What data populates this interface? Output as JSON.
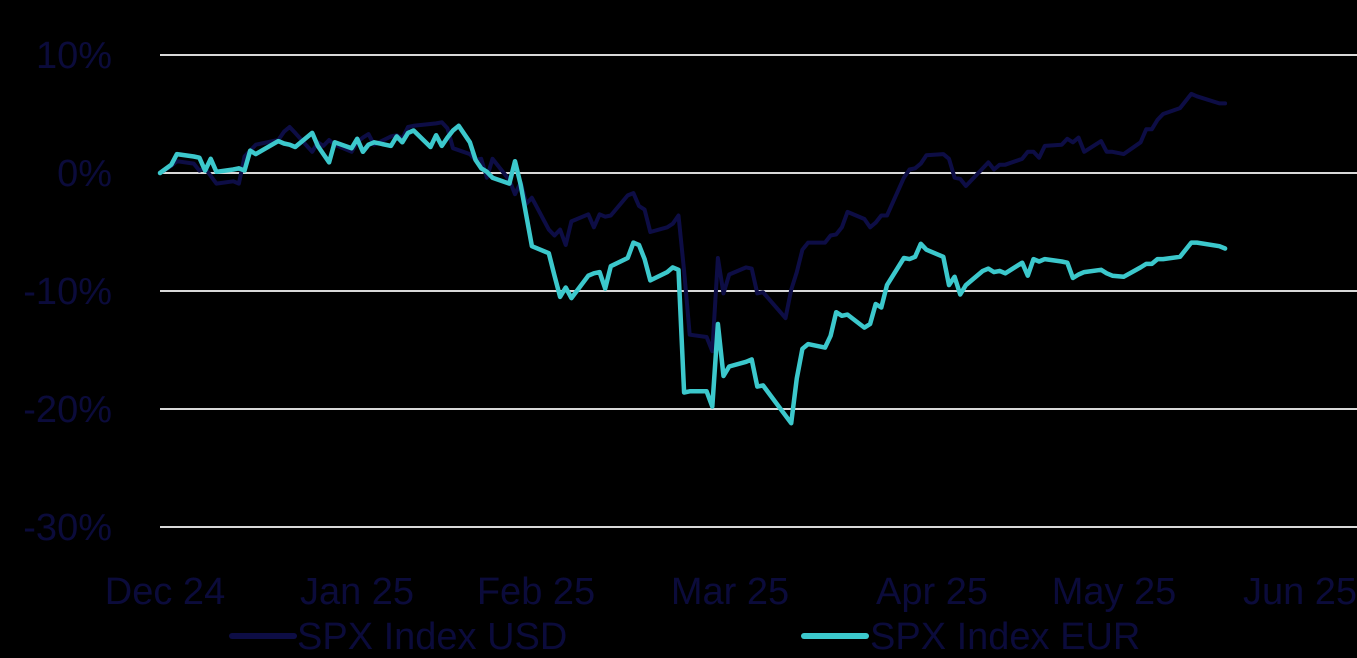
{
  "colors": {
    "background": "#000000",
    "grid": "#d9d9d9",
    "text": "#0b0b3b"
  },
  "chart_data": {
    "type": "line",
    "title": "",
    "xlabel": "",
    "ylabel": "",
    "ylim": [
      -30,
      10
    ],
    "yticks": [
      10,
      0,
      -10,
      -20,
      -30
    ],
    "ytick_labels": [
      "10%",
      "0%",
      "-10%",
      "-20%",
      "-30%"
    ],
    "xlim": [
      "2024-12-31",
      "2025-06-30"
    ],
    "xticks": [
      "2024-12-31",
      "2025-01-31",
      "2025-02-28",
      "2025-03-31",
      "2025-04-30",
      "2025-05-31",
      "2025-06-30"
    ],
    "xtick_labels": [
      "Dec 24",
      "Jan 25",
      "Feb 25",
      "Mar 25",
      "Apr 25",
      "May 25",
      "Jun 25"
    ],
    "grid": true,
    "legend_position": "bottom",
    "series": [
      {
        "name": "SPX Index USD",
        "color": "#0d0d45",
        "points": [
          [
            "2024-12-31",
            0
          ],
          [
            "2025-01-02",
            0.6
          ],
          [
            "2025-01-03",
            1.0
          ],
          [
            "2025-01-06",
            0.8
          ],
          [
            "2025-01-07",
            0.2
          ],
          [
            "2025-01-08",
            0.4
          ],
          [
            "2025-01-10",
            -0.9
          ],
          [
            "2025-01-13",
            -0.7
          ],
          [
            "2025-01-14",
            -0.9
          ],
          [
            "2025-01-15",
            1.4
          ],
          [
            "2025-01-17",
            2.4
          ],
          [
            "2025-01-21",
            2.8
          ],
          [
            "2025-01-22",
            3.5
          ],
          [
            "2025-01-23",
            3.9
          ],
          [
            "2025-01-24",
            3.4
          ],
          [
            "2025-01-27",
            1.8
          ],
          [
            "2025-01-28",
            2.6
          ],
          [
            "2025-01-29",
            2.3
          ],
          [
            "2025-01-30",
            2.8
          ],
          [
            "2025-01-31",
            2.4
          ],
          [
            "2025-02-03",
            1.8
          ],
          [
            "2025-02-04",
            2.6
          ],
          [
            "2025-02-05",
            3.0
          ],
          [
            "2025-02-06",
            3.3
          ],
          [
            "2025-02-07",
            2.4
          ],
          [
            "2025-02-10",
            3.1
          ],
          [
            "2025-02-11",
            3.2
          ],
          [
            "2025-02-12",
            2.9
          ],
          [
            "2025-02-13",
            3.9
          ],
          [
            "2025-02-14",
            4.0
          ],
          [
            "2025-02-18",
            4.2
          ],
          [
            "2025-02-19",
            4.3
          ],
          [
            "2025-02-20",
            3.8
          ],
          [
            "2025-02-21",
            2.1
          ],
          [
            "2025-02-24",
            1.6
          ],
          [
            "2025-02-25",
            1.1
          ],
          [
            "2025-02-26",
            1.2
          ],
          [
            "2025-02-27",
            -0.4
          ],
          [
            "2025-02-28",
            1.2
          ],
          [
            "2025-03-03",
            -0.6
          ],
          [
            "2025-03-04",
            -1.8
          ],
          [
            "2025-03-05",
            -0.8
          ],
          [
            "2025-03-06",
            -2.6
          ],
          [
            "2025-03-07",
            -2.1
          ],
          [
            "2025-03-10",
            -4.8
          ],
          [
            "2025-03-11",
            -5.3
          ],
          [
            "2025-03-12",
            -4.8
          ],
          [
            "2025-03-13",
            -6.1
          ],
          [
            "2025-03-14",
            -4.1
          ],
          [
            "2025-03-17",
            -3.5
          ],
          [
            "2025-03-18",
            -4.6
          ],
          [
            "2025-03-19",
            -3.5
          ],
          [
            "2025-03-20",
            -3.7
          ],
          [
            "2025-03-21",
            -3.6
          ],
          [
            "2025-03-24",
            -1.9
          ],
          [
            "2025-03-25",
            -1.7
          ],
          [
            "2025-03-26",
            -2.8
          ],
          [
            "2025-03-27",
            -3.1
          ],
          [
            "2025-03-28",
            -5.0
          ],
          [
            "2025-03-31",
            -4.6
          ],
          [
            "2025-04-01",
            -4.3
          ],
          [
            "2025-04-02",
            -3.6
          ],
          [
            "2025-04-03",
            -8.3
          ],
          [
            "2025-04-04",
            -13.7
          ],
          [
            "2025-04-07",
            -13.9
          ],
          [
            "2025-04-08",
            -15.1
          ],
          [
            "2025-04-09",
            -7.2
          ],
          [
            "2025-04-10",
            -10.2
          ],
          [
            "2025-04-11",
            -8.6
          ],
          [
            "2025-04-14",
            -8.0
          ],
          [
            "2025-04-15",
            -8.1
          ],
          [
            "2025-04-16",
            -10.2
          ],
          [
            "2025-04-17",
            -10.1
          ],
          [
            "2025-04-21",
            -12.3
          ],
          [
            "2025-04-22",
            -9.9
          ],
          [
            "2025-04-23",
            -8.4
          ],
          [
            "2025-04-24",
            -6.5
          ],
          [
            "2025-04-25",
            -5.9
          ],
          [
            "2025-04-28",
            -5.9
          ],
          [
            "2025-04-29",
            -5.3
          ],
          [
            "2025-04-30",
            -5.2
          ],
          [
            "2025-05-01",
            -4.6
          ],
          [
            "2025-05-02",
            -3.3
          ],
          [
            "2025-05-05",
            -3.9
          ],
          [
            "2025-05-06",
            -4.6
          ],
          [
            "2025-05-07",
            -4.2
          ],
          [
            "2025-05-08",
            -3.6
          ],
          [
            "2025-05-09",
            -3.6
          ],
          [
            "2025-05-12",
            -0.4
          ],
          [
            "2025-05-13",
            0.3
          ],
          [
            "2025-05-14",
            0.4
          ],
          [
            "2025-05-15",
            0.8
          ],
          [
            "2025-05-16",
            1.5
          ],
          [
            "2025-05-19",
            1.6
          ],
          [
            "2025-05-20",
            1.2
          ],
          [
            "2025-05-21",
            -0.4
          ],
          [
            "2025-05-22",
            -0.5
          ],
          [
            "2025-05-23",
            -1.1
          ],
          [
            "2025-05-27",
            0.9
          ],
          [
            "2025-05-28",
            0.3
          ],
          [
            "2025-05-29",
            0.7
          ],
          [
            "2025-05-30",
            0.7
          ],
          [
            "2025-06-02",
            1.2
          ],
          [
            "2025-06-03",
            1.8
          ],
          [
            "2025-06-04",
            1.8
          ],
          [
            "2025-06-05",
            1.3
          ],
          [
            "2025-06-06",
            2.3
          ],
          [
            "2025-06-09",
            2.4
          ],
          [
            "2025-06-10",
            2.9
          ],
          [
            "2025-06-11",
            2.6
          ],
          [
            "2025-06-12",
            3.0
          ],
          [
            "2025-06-13",
            1.8
          ],
          [
            "2025-06-16",
            2.7
          ],
          [
            "2025-06-17",
            1.8
          ],
          [
            "2025-06-18",
            1.8
          ],
          [
            "2025-06-20",
            1.6
          ],
          [
            "2025-06-23",
            2.6
          ],
          [
            "2025-06-24",
            3.7
          ],
          [
            "2025-06-25",
            3.7
          ],
          [
            "2025-06-26",
            4.5
          ],
          [
            "2025-06-27",
            5.0
          ],
          [
            "2025-06-30",
            5.5
          ],
          [
            "2025-07-02",
            6.7
          ],
          [
            "2025-07-03",
            6.5
          ],
          [
            "2025-07-07",
            5.9
          ],
          [
            "2025-07-08",
            5.9
          ]
        ]
      },
      {
        "name": "SPX Index EUR",
        "color": "#3cc8cc",
        "points": [
          [
            "2024-12-31",
            0
          ],
          [
            "2025-01-02",
            0.7
          ],
          [
            "2025-01-03",
            1.6
          ],
          [
            "2025-01-06",
            1.4
          ],
          [
            "2025-01-07",
            1.3
          ],
          [
            "2025-01-08",
            0.2
          ],
          [
            "2025-01-09",
            1.2
          ],
          [
            "2025-01-10",
            0.1
          ],
          [
            "2025-01-13",
            0.3
          ],
          [
            "2025-01-14",
            0.4
          ],
          [
            "2025-01-15",
            0.2
          ],
          [
            "2025-01-16",
            1.9
          ],
          [
            "2025-01-17",
            1.6
          ],
          [
            "2025-01-21",
            2.7
          ],
          [
            "2025-01-22",
            2.5
          ],
          [
            "2025-01-23",
            2.4
          ],
          [
            "2025-01-24",
            2.2
          ],
          [
            "2025-01-27",
            3.4
          ],
          [
            "2025-01-28",
            2.3
          ],
          [
            "2025-01-29",
            1.6
          ],
          [
            "2025-01-30",
            0.9
          ],
          [
            "2025-01-31",
            2.6
          ],
          [
            "2025-02-03",
            2.1
          ],
          [
            "2025-02-04",
            2.9
          ],
          [
            "2025-02-05",
            1.8
          ],
          [
            "2025-02-06",
            2.4
          ],
          [
            "2025-02-07",
            2.6
          ],
          [
            "2025-02-10",
            2.3
          ],
          [
            "2025-02-11",
            3.1
          ],
          [
            "2025-02-12",
            2.6
          ],
          [
            "2025-02-13",
            3.4
          ],
          [
            "2025-02-14",
            3.6
          ],
          [
            "2025-02-17",
            2.2
          ],
          [
            "2025-02-18",
            3.2
          ],
          [
            "2025-02-19",
            2.3
          ],
          [
            "2025-02-20",
            3.0
          ],
          [
            "2025-02-21",
            3.6
          ],
          [
            "2025-02-22",
            4.0
          ],
          [
            "2025-02-24",
            2.6
          ],
          [
            "2025-02-25",
            1.1
          ],
          [
            "2025-02-26",
            0.4
          ],
          [
            "2025-02-27",
            0.1
          ],
          [
            "2025-02-28",
            -0.4
          ],
          [
            "2025-03-03",
            -0.9
          ],
          [
            "2025-03-04",
            1.0
          ],
          [
            "2025-03-05",
            -1.0
          ],
          [
            "2025-03-06",
            -3.6
          ],
          [
            "2025-03-07",
            -6.2
          ],
          [
            "2025-03-10",
            -6.8
          ],
          [
            "2025-03-11",
            -8.7
          ],
          [
            "2025-03-12",
            -10.5
          ],
          [
            "2025-03-13",
            -9.7
          ],
          [
            "2025-03-14",
            -10.6
          ],
          [
            "2025-03-17",
            -8.7
          ],
          [
            "2025-03-18",
            -8.5
          ],
          [
            "2025-03-19",
            -8.4
          ],
          [
            "2025-03-20",
            -9.8
          ],
          [
            "2025-03-21",
            -7.9
          ],
          [
            "2025-03-24",
            -7.2
          ],
          [
            "2025-03-25",
            -5.9
          ],
          [
            "2025-03-26",
            -6.1
          ],
          [
            "2025-03-27",
            -7.3
          ],
          [
            "2025-03-28",
            -9.1
          ],
          [
            "2025-03-31",
            -8.4
          ],
          [
            "2025-04-01",
            -8.0
          ],
          [
            "2025-04-02",
            -8.2
          ],
          [
            "2025-04-03",
            -18.6
          ],
          [
            "2025-04-04",
            -18.5
          ],
          [
            "2025-04-07",
            -18.5
          ],
          [
            "2025-04-08",
            -19.8
          ],
          [
            "2025-04-09",
            -12.8
          ],
          [
            "2025-04-10",
            -17.2
          ],
          [
            "2025-04-11",
            -16.4
          ],
          [
            "2025-04-14",
            -16.0
          ],
          [
            "2025-04-15",
            -15.8
          ],
          [
            "2025-04-16",
            -18.1
          ],
          [
            "2025-04-17",
            -18.0
          ],
          [
            "2025-04-22",
            -21.2
          ],
          [
            "2025-04-23",
            -17.4
          ],
          [
            "2025-04-24",
            -14.9
          ],
          [
            "2025-04-25",
            -14.5
          ],
          [
            "2025-04-28",
            -14.8
          ],
          [
            "2025-04-29",
            -13.8
          ],
          [
            "2025-04-30",
            -11.8
          ],
          [
            "2025-05-01",
            -12.1
          ],
          [
            "2025-05-02",
            -12.0
          ],
          [
            "2025-05-05",
            -13.1
          ],
          [
            "2025-05-06",
            -12.8
          ],
          [
            "2025-05-07",
            -11.1
          ],
          [
            "2025-05-08",
            -11.4
          ],
          [
            "2025-05-09",
            -9.5
          ],
          [
            "2025-05-12",
            -7.2
          ],
          [
            "2025-05-13",
            -7.3
          ],
          [
            "2025-05-14",
            -7.1
          ],
          [
            "2025-05-15",
            -6.0
          ],
          [
            "2025-05-16",
            -6.5
          ],
          [
            "2025-05-19",
            -7.1
          ],
          [
            "2025-05-20",
            -9.5
          ],
          [
            "2025-05-21",
            -8.8
          ],
          [
            "2025-05-22",
            -10.3
          ],
          [
            "2025-05-23",
            -9.5
          ],
          [
            "2025-05-26",
            -8.3
          ],
          [
            "2025-05-27",
            -8.1
          ],
          [
            "2025-05-28",
            -8.4
          ],
          [
            "2025-05-29",
            -8.3
          ],
          [
            "2025-05-30",
            -8.5
          ],
          [
            "2025-06-02",
            -7.6
          ],
          [
            "2025-06-03",
            -8.7
          ],
          [
            "2025-06-04",
            -7.3
          ],
          [
            "2025-06-05",
            -7.5
          ],
          [
            "2025-06-06",
            -7.3
          ],
          [
            "2025-06-09",
            -7.5
          ],
          [
            "2025-06-10",
            -7.6
          ],
          [
            "2025-06-11",
            -8.9
          ],
          [
            "2025-06-12",
            -8.6
          ],
          [
            "2025-06-13",
            -8.4
          ],
          [
            "2025-06-16",
            -8.2
          ],
          [
            "2025-06-17",
            -8.5
          ],
          [
            "2025-06-18",
            -8.7
          ],
          [
            "2025-06-20",
            -8.8
          ],
          [
            "2025-06-23",
            -8.0
          ],
          [
            "2025-06-24",
            -7.7
          ],
          [
            "2025-06-25",
            -7.7
          ],
          [
            "2025-06-26",
            -7.3
          ],
          [
            "2025-06-27",
            -7.3
          ],
          [
            "2025-06-30",
            -7.1
          ],
          [
            "2025-07-02",
            -5.9
          ],
          [
            "2025-07-03",
            -5.9
          ],
          [
            "2025-07-07",
            -6.2
          ],
          [
            "2025-07-08",
            -6.4
          ]
        ]
      }
    ]
  }
}
